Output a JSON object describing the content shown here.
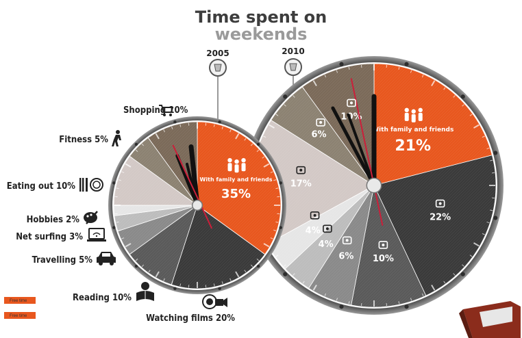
{
  "title_line1": "Time spent on",
  "title_line2": "weekends",
  "colors": {
    "family": "#e8571e",
    "films": "#3a3a3a",
    "reading": "#5a5a5a",
    "travelling": "#8a8a8a",
    "net": "#bdbdbd",
    "hobbies": "#e6e6e6",
    "eating": "#d3c9c6",
    "fitness": "#8c8272",
    "shopping": "#7b6a59",
    "clock_rim": "#5f5f5f",
    "hand": "#111111",
    "second_hand": "#cc1f3a"
  },
  "legend": [
    {
      "swatch": "family",
      "label": "Free time"
    },
    {
      "swatch": "family",
      "label": "Free time"
    }
  ],
  "chart_data": [
    {
      "type": "pie",
      "year": "2005",
      "slices": [
        {
          "name": "With family and friends",
          "value": 35,
          "label": "35%",
          "key": "family",
          "icon": "family-icon"
        },
        {
          "name": "Watching films",
          "value": 20,
          "label": "20%",
          "key": "films",
          "icon": "film-camera-icon"
        },
        {
          "name": "Reading",
          "value": 10,
          "label": "10%",
          "key": "reading",
          "icon": "reading-icon"
        },
        {
          "name": "Travelling",
          "value": 5,
          "label": "5%",
          "key": "travelling",
          "icon": "car-icon"
        },
        {
          "name": "Net surfing",
          "value": 3,
          "label": "3%",
          "key": "net",
          "icon": "laptop-wifi-icon"
        },
        {
          "name": "Hobbies",
          "value": 2,
          "label": "2%",
          "key": "hobbies",
          "icon": "palette-icon"
        },
        {
          "name": "Eating out",
          "value": 10,
          "label": "10%",
          "key": "eating",
          "icon": "cutlery-icon"
        },
        {
          "name": "Fitness",
          "value": 5,
          "label": "5%",
          "key": "fitness",
          "icon": "fitness-icon"
        },
        {
          "name": "Shopping",
          "value": 10,
          "label": "10%",
          "key": "shopping",
          "icon": "cart-icon"
        }
      ]
    },
    {
      "type": "pie",
      "year": "2010",
      "slices": [
        {
          "name": "With family and friends",
          "value": 21,
          "label": "21%",
          "key": "family",
          "icon": "family-icon"
        },
        {
          "name": "Watching films",
          "value": 22,
          "label": "22%",
          "key": "films",
          "icon": "film-camera-icon"
        },
        {
          "name": "Reading",
          "value": 10,
          "label": "10%",
          "key": "reading",
          "icon": "reading-icon"
        },
        {
          "name": "Travelling",
          "value": 6,
          "label": "6%",
          "key": "travelling",
          "icon": "car-icon"
        },
        {
          "name": "Net surfing",
          "value": 4,
          "label": "4%",
          "key": "net",
          "icon": "laptop-wifi-icon"
        },
        {
          "name": "Hobbies",
          "value": 4,
          "label": "4%",
          "key": "hobbies",
          "icon": "palette-icon"
        },
        {
          "name": "Eating out",
          "value": 17,
          "label": "17%",
          "key": "eating",
          "icon": "cutlery-icon"
        },
        {
          "name": "Fitness",
          "value": 6,
          "label": "6%",
          "key": "fitness",
          "icon": "fitness-icon"
        },
        {
          "name": "Shopping",
          "value": 10,
          "label": "10%",
          "key": "shopping",
          "icon": "cart-icon"
        }
      ]
    }
  ]
}
